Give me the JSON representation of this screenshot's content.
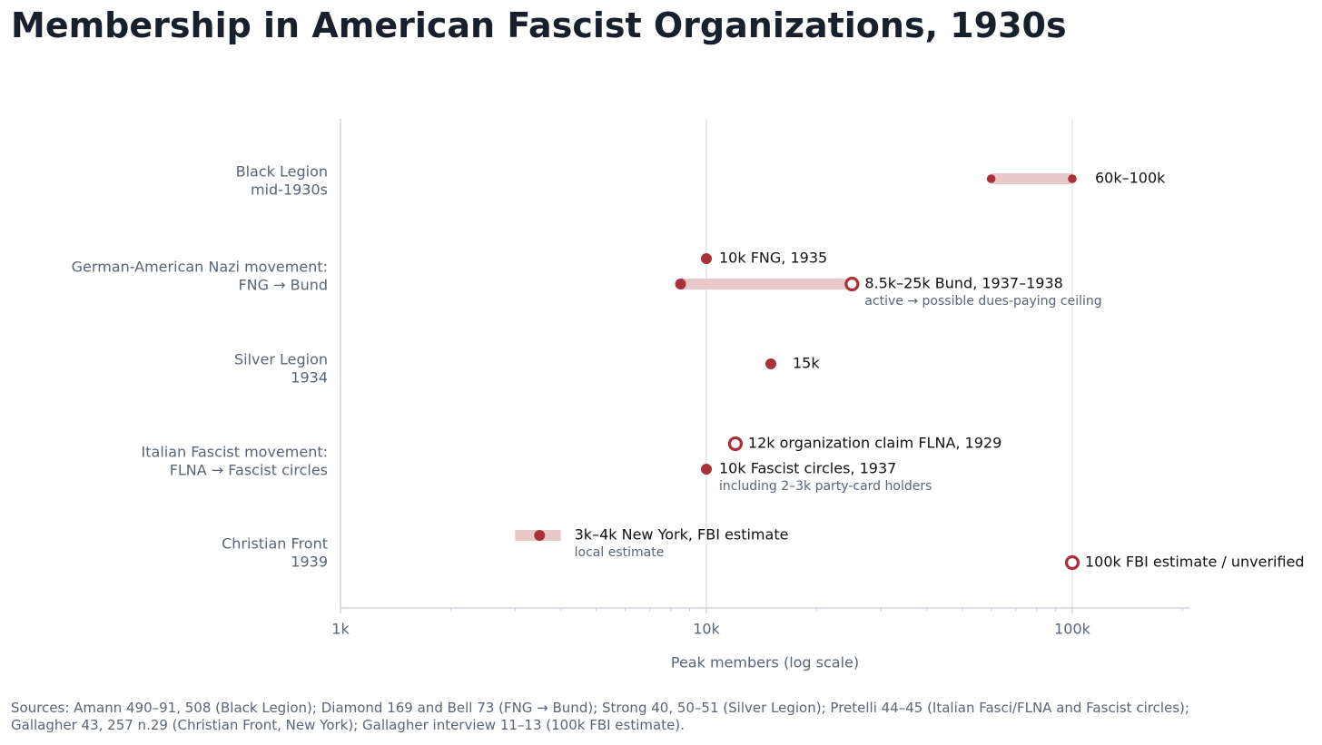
{
  "chart_data": {
    "type": "dot-range",
    "title": "Membership in American Fascist Organizations, 1930s",
    "xlabel": "Peak members (log scale)",
    "xscale": "log",
    "xlim": [
      1000,
      200000
    ],
    "xticks": [
      {
        "value": 1000,
        "label": "1k"
      },
      {
        "value": 10000,
        "label": "10k"
      },
      {
        "value": 100000,
        "label": "100k"
      }
    ],
    "colors": {
      "marker": "#a9323a",
      "range_band": "#e9c8c9",
      "axis": "#c7ccd6",
      "gridline": "#d3dae3",
      "label": "#596578",
      "text": "#111111",
      "note": "#596578"
    },
    "rows": [
      {
        "label_lines": [
          "Black Legion",
          "mid-1930s"
        ],
        "entries": [
          {
            "kind": "range",
            "min": 60000,
            "max": 100000,
            "marker": "small-ends",
            "text": "60k–100k",
            "note": ""
          }
        ]
      },
      {
        "label_lines": [
          "German-American Nazi movement:",
          "FNG → Bund"
        ],
        "entries": [
          {
            "kind": "point",
            "value": 10000,
            "marker": "filled",
            "text": "10k  FNG, 1935",
            "note": ""
          },
          {
            "kind": "range",
            "min": 8500,
            "max": 25000,
            "marker": "filled-to-open",
            "text": "8.5k–25k  Bund, 1937–1938",
            "note": "active → possible dues-paying ceiling"
          }
        ]
      },
      {
        "label_lines": [
          "Silver Legion",
          "1934"
        ],
        "entries": [
          {
            "kind": "point",
            "value": 15000,
            "marker": "filled",
            "text": "15k",
            "note": ""
          }
        ]
      },
      {
        "label_lines": [
          "Italian Fascist movement:",
          "FLNA → Fascist circles"
        ],
        "entries": [
          {
            "kind": "point",
            "value": 12000,
            "marker": "open",
            "text": "12k organization claim  FLNA, 1929",
            "note": ""
          },
          {
            "kind": "point",
            "value": 10000,
            "marker": "filled",
            "text": "10k  Fascist circles, 1937",
            "note": "including 2–3k party-card holders"
          }
        ]
      },
      {
        "label_lines": [
          "Christian Front",
          "1939"
        ],
        "entries": [
          {
            "kind": "range",
            "min": 3000,
            "max": 4000,
            "marker": "band-with-mid",
            "mid": 3500,
            "text": "3k–4k  New York, FBI estimate",
            "note": "local estimate"
          },
          {
            "kind": "point",
            "value": 100000,
            "marker": "open",
            "text": "100k  FBI estimate / unverified",
            "note": ""
          }
        ]
      }
    ]
  },
  "sources": [
    "Sources: Amann 490–91, 508 (Black Legion); Diamond 169 and Bell 73 (FNG → Bund); Strong 40, 50–51 (Silver Legion); Pretelli 44–45 (Italian Fasci/FLNA and Fascist circles);",
    "Gallagher 43, 257 n.29 (Christian Front, New York); Gallagher interview 11–13 (100k FBI estimate)."
  ]
}
